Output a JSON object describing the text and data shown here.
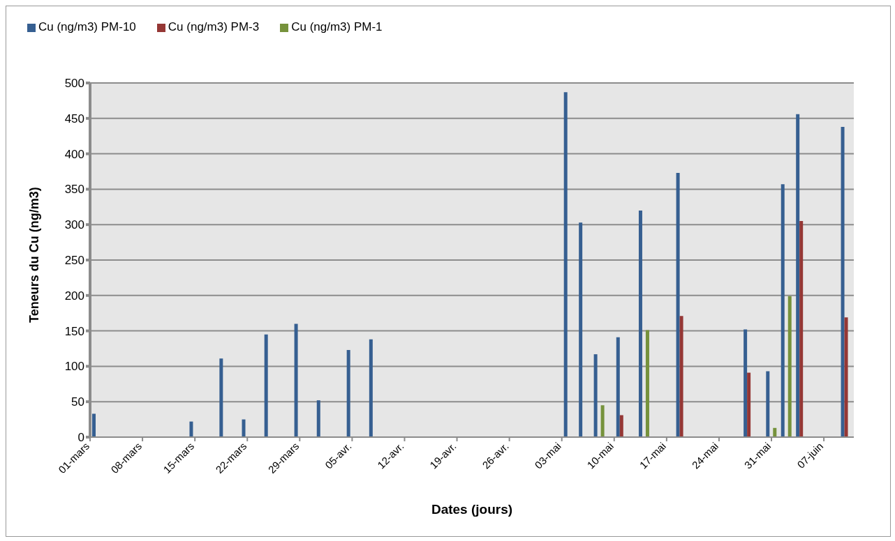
{
  "chart_data": {
    "type": "bar",
    "xlabel": "Dates (jours)",
    "ylabel": "Teneurs du Cu (ng/m3)",
    "x": [
      "--03-02",
      "--03-15",
      "--03-19",
      "--03-22",
      "--03-25",
      "--03-29",
      "--04-01",
      "--04-05",
      "--04-08",
      "--05-04",
      "--05-06",
      "--05-08",
      "--05-11",
      "--05-14",
      "--05-19",
      "--05-28",
      "--05-31",
      "--06-02",
      "--06-04",
      "--06-10"
    ],
    "series": [
      {
        "name": "Cu (ng/m3) PM-10",
        "color": "#365f91",
        "values": [
          33,
          22,
          111,
          25,
          145,
          160,
          52,
          123,
          138,
          487,
          303,
          117,
          141,
          320,
          373,
          152,
          93,
          357,
          456,
          438
        ]
      },
      {
        "name": "Cu (ng/m3) PM-3",
        "color": "#953735",
        "values": [
          null,
          null,
          null,
          null,
          null,
          null,
          null,
          null,
          null,
          null,
          null,
          null,
          31,
          null,
          171,
          91,
          null,
          null,
          305,
          169
        ]
      },
      {
        "name": "Cu (ng/m3) PM-1",
        "color": "#76923c",
        "values": [
          null,
          null,
          null,
          null,
          null,
          null,
          null,
          null,
          null,
          null,
          null,
          45,
          null,
          151,
          null,
          null,
          13,
          199,
          null,
          null
        ]
      }
    ],
    "xlim": [
      "--03-01",
      "--06-11"
    ],
    "xticks": [
      {
        "value": "--03-01",
        "label": "01-mars"
      },
      {
        "value": "--03-08",
        "label": "08-mars"
      },
      {
        "value": "--03-15",
        "label": "15-mars"
      },
      {
        "value": "--03-22",
        "label": "22-mars"
      },
      {
        "value": "--03-29",
        "label": "29-mars"
      },
      {
        "value": "--04-05",
        "label": "05-avr."
      },
      {
        "value": "--04-12",
        "label": "12-avr."
      },
      {
        "value": "--04-19",
        "label": "19-avr."
      },
      {
        "value": "--04-26",
        "label": "26-avr."
      },
      {
        "value": "--05-03",
        "label": "03-mai"
      },
      {
        "value": "--05-10",
        "label": "10-mai"
      },
      {
        "value": "--05-17",
        "label": "17-mai"
      },
      {
        "value": "--05-24",
        "label": "24-mai"
      },
      {
        "value": "--05-31",
        "label": "31-mai"
      },
      {
        "value": "--06-07",
        "label": "07-juin"
      }
    ],
    "ylim": [
      0,
      500
    ],
    "yticks": [
      0,
      50,
      100,
      150,
      200,
      250,
      300,
      350,
      400,
      450,
      500
    ],
    "grid": "y",
    "legend": "top left"
  }
}
